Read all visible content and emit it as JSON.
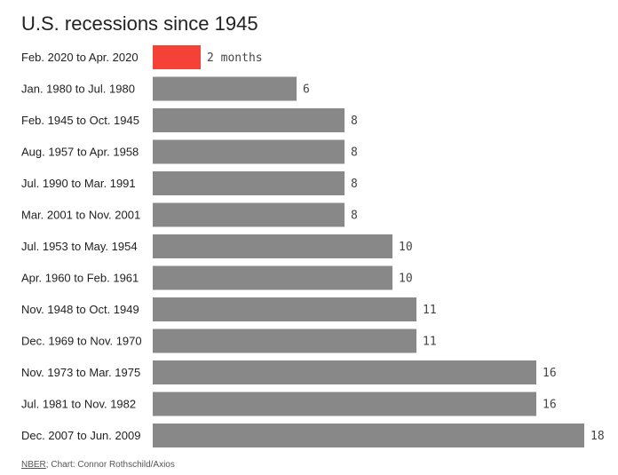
{
  "chart_data": {
    "type": "bar",
    "orientation": "horizontal",
    "title": "U.S. recessions since 1945",
    "categories": [
      "Feb. 2020 to Apr. 2020",
      "Jan. 1980 to Jul. 1980",
      "Feb. 1945 to Oct. 1945",
      "Aug. 1957 to Apr. 1958",
      "Jul. 1990 to Mar. 1991",
      "Mar. 2001 to Nov. 2001",
      "Jul. 1953 to May. 1954",
      "Apr. 1960 to Feb. 1961",
      "Nov. 1948 to Oct. 1949",
      "Dec. 1969 to Nov. 1970",
      "Nov. 1973 to Mar. 1975",
      "Jul. 1981 to Nov. 1982",
      "Dec. 2007 to Jun. 2009"
    ],
    "values": [
      2,
      6,
      8,
      8,
      8,
      8,
      10,
      10,
      11,
      11,
      16,
      16,
      18
    ],
    "value_labels": [
      "2 months",
      "6",
      "8",
      "8",
      "8",
      "8",
      "10",
      "10",
      "11",
      "11",
      "16",
      "16",
      "18"
    ],
    "xlim": [
      0,
      18
    ],
    "grid": false,
    "colors": {
      "highlight": "#f44336",
      "default": "#888888"
    },
    "highlight_index": 0
  },
  "source": {
    "link_text": "NBER",
    "rest": "; Chart: Connor Rothschild/Axios"
  }
}
